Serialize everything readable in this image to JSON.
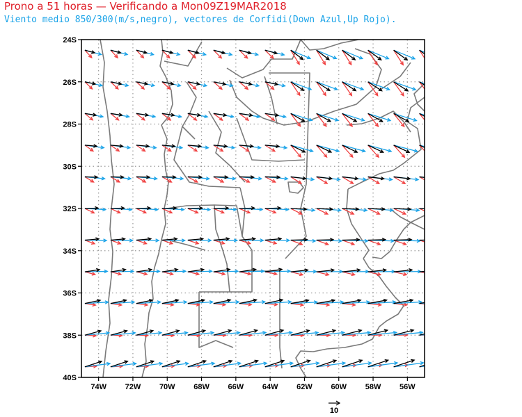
{
  "header": {
    "title": "Prono a 51 horas — Verificando a Mon09Z19MAR2018",
    "subtitle": "Viento medio 850/300(m/s,negro), vectores de Corfidi(Down Azul,Up Rojo)."
  },
  "map": {
    "lon_range": [
      -75,
      -55
    ],
    "lat_range": [
      -40,
      -24
    ],
    "x_ticks": [
      "74W",
      "72W",
      "70W",
      "68W",
      "66W",
      "64W",
      "62W",
      "60W",
      "58W",
      "56W"
    ],
    "y_ticks": [
      "24S",
      "26S",
      "28S",
      "30S",
      "32S",
      "34S",
      "36S",
      "38S",
      "40S"
    ],
    "grid": true,
    "colors": {
      "mean_wind": "#000000",
      "corfidi_down": "#1aa3e8",
      "corfidi_up": "#f04040",
      "borders": "#7a7a7a",
      "grid": "#9a9a9a"
    }
  },
  "legend": {
    "reference_vector_label": "10"
  }
}
